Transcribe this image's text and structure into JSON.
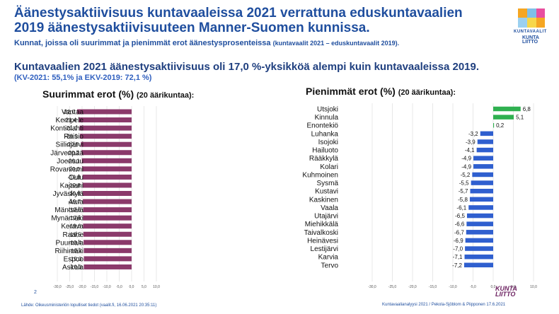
{
  "title_lines": [
    "Äänestysaktiivisuus kuntavaaleissa 2021 verrattuna eduskuntavaalien",
    "2019 äänestysaktiivisuuteen Manner-Suomen kunnissa."
  ],
  "subtitle": "Kunnat, joissa oli suurimmat ja pienimmät erot äänestysprosenteissa",
  "subtitle_small": "(kuntavaalit  2021 – eduskuntavaalit  2019).",
  "headline": "Kuntavaalien 2021 äänestysaktiivisuus oli 17,0 %-yksikköä alempi kuin kuntavaaleissa 2019.",
  "headline_sub": "(KV-2021: 55,1% ja EKV-2019: 72,1 %)",
  "logo": {
    "text1": "KUNTAVAALIT",
    "text2_line1": "KUNTA",
    "text2_line2": "LIITTO"
  },
  "page_number": "2",
  "source": "Lähde: Oikeusministeriön lopulliset tiedot (vaalit.fi, 16.06.2021 20:35:11)",
  "credit": "Kuntavaalianalyysi 2021 / Pekola-Sjöblom & Piipponen 17.6.2021",
  "bottom_logo": {
    "line1": "KUNTA",
    "line2": "LIITTO"
  },
  "colors": {
    "bar_left": "#8b3a6b",
    "bar_neg": "#2f5fcf",
    "bar_pos": "#2fb050",
    "title": "#1f4e9e"
  },
  "chart_data": [
    {
      "type": "bar",
      "orientation": "horizontal",
      "title": "Suurimmat erot (%)",
      "title_suffix": "(20 äärikuntaa):",
      "categories": [
        "Vantaa",
        "Kempele",
        "Kontiolahti",
        "Raisio",
        "Siilinjärvi",
        "Järvenpää",
        "Joensuu",
        "Rovaniemi",
        "Oulu",
        "Kajaani",
        "Jyväskylä",
        "Aura",
        "Mäntsälä",
        "Mynämäki",
        "Kerava",
        "Raahe",
        "Puumala",
        "Riihimäki",
        "Espoo",
        "Askola"
      ],
      "values": [
        -22.0,
        -21.4,
        -21.0,
        -20.9,
        -20.5,
        -20.2,
        -20.1,
        -20.0,
        -19.8,
        -19.8,
        -19.8,
        -19.7,
        -19.6,
        -19.6,
        -19.6,
        -19.5,
        -19.4,
        -19.3,
        -19.3,
        -19.3
      ],
      "value_labels": [
        "-22,0",
        "-21,4",
        "-21,0",
        "-20,9",
        "-20,5",
        "-20,2",
        "-20,1",
        "-20,0",
        "-19,8",
        "-19,8",
        "-19,8",
        "-19,7",
        "-19,6",
        "-19,6",
        "-19,6",
        "-19,5",
        "-19,4",
        "-19,3",
        "-19,3",
        "-19,3"
      ],
      "xlim": [
        -30,
        10
      ],
      "ticks": [
        -30,
        -25,
        -20,
        -15,
        -10,
        -5,
        0,
        5,
        10
      ],
      "tick_labels": [
        "-30,0",
        "-25,0",
        "-20,0",
        "-15,0",
        "-10,0",
        "-5,0",
        "0,0",
        "5,0",
        "10,0"
      ],
      "grid": true
    },
    {
      "type": "bar",
      "orientation": "horizontal",
      "title": "Pienimmät erot (%)",
      "title_suffix": "(20 äärikuntaa):",
      "categories": [
        "Utsjoki",
        "Kinnula",
        "Enontekiö",
        "Luhanka",
        "Isojoki",
        "Hailuoto",
        "Rääkkylä",
        "Kolari",
        "Kuhmoinen",
        "Sysmä",
        "Kustavi",
        "Kaskinen",
        "Vaala",
        "Utajärvi",
        "Miehikkälä",
        "Taivalkoski",
        "Heinävesi",
        "Lestijärvi",
        "Karvia",
        "Tervo"
      ],
      "values": [
        6.8,
        5.1,
        0.2,
        -3.2,
        -3.9,
        -4.1,
        -4.9,
        -4.9,
        -5.2,
        -5.5,
        -5.7,
        -5.8,
        -6.1,
        -6.5,
        -6.6,
        -6.7,
        -6.9,
        -7.0,
        -7.1,
        -7.2
      ],
      "value_labels": [
        "6,8",
        "5,1",
        "0,2",
        "-3,2",
        "-3,9",
        "-4,1",
        "-4,9",
        "-4,9",
        "-5,2",
        "-5,5",
        "-5,7",
        "-5,8",
        "-6,1",
        "-6,5",
        "-6,6",
        "-6,7",
        "-6,9",
        "-7,0",
        "-7,1",
        "-7,2"
      ],
      "xlim": [
        -30,
        10
      ],
      "ticks": [
        -30,
        -25,
        -20,
        -15,
        -10,
        -5,
        0,
        5,
        10
      ],
      "tick_labels": [
        "-30,0",
        "-25,0",
        "-20,0",
        "-15,0",
        "-10,0",
        "-5,0",
        "0,0",
        "5,0",
        "10,0"
      ],
      "grid": true
    }
  ]
}
